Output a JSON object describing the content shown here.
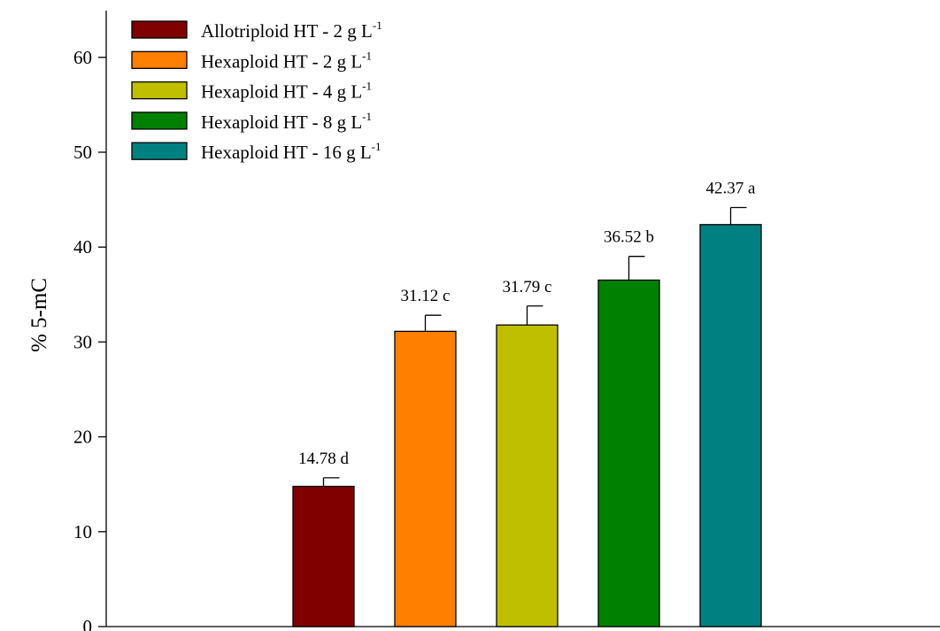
{
  "chart_data": {
    "type": "bar",
    "ylabel": "% 5-mC",
    "xlabel": "",
    "ylim": [
      0,
      65
    ],
    "yticks": [
      0,
      10,
      20,
      30,
      40,
      50,
      60
    ],
    "grid": false,
    "legend_position": "top-left",
    "series": [
      {
        "name": "Allotriploid HT - 2 g L",
        "unit_superscript": "-1",
        "value": 14.78,
        "error": 0.9,
        "letter": "d",
        "data_label": "14.78 d",
        "color": "#800000"
      },
      {
        "name": "Hexaploid HT - 2 g L",
        "unit_superscript": "-1",
        "value": 31.12,
        "error": 1.7,
        "letter": "c",
        "data_label": "31.12 c",
        "color": "#ff7f00"
      },
      {
        "name": "Hexaploid HT - 4 g L",
        "unit_superscript": "-1",
        "value": 31.79,
        "error": 2.0,
        "letter": "c",
        "data_label": "31.79 c",
        "color": "#bfbf00"
      },
      {
        "name": "Hexaploid HT - 8 g L",
        "unit_superscript": "-1",
        "value": 36.52,
        "error": 2.5,
        "letter": "b",
        "data_label": "36.52 b",
        "color": "#008000"
      },
      {
        "name": "Hexaploid HT - 16 g L",
        "unit_superscript": "-1",
        "value": 42.37,
        "error": 1.8,
        "letter": "a",
        "data_label": "42.37 a",
        "color": "#008080"
      }
    ]
  }
}
